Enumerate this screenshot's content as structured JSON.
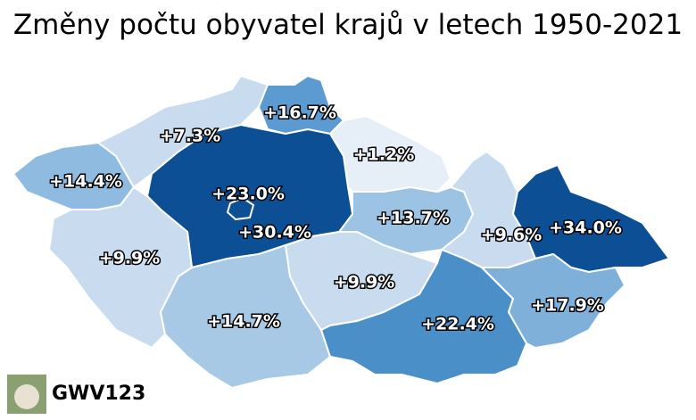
{
  "title": "Změny počtu obyvatel krajů v letech 1950-2021",
  "regions": [
    {
      "label": "+14.4%",
      "color": "#8fbbe0"
    },
    {
      "label": "+7.3%",
      "color": "#c9dcef"
    },
    {
      "label": "+16.7%",
      "color": "#5b9bd1"
    },
    {
      "label": "+1.2%",
      "color": "#e6eff8"
    },
    {
      "label": "+13.7%",
      "color": "#9cc3e4"
    },
    {
      "label": "+9.6%",
      "color": "#c9dcef"
    },
    {
      "label": "+34.0%",
      "color": "#0d4f94"
    },
    {
      "label": "+23.0%",
      "color": "#0d4f94"
    },
    {
      "label": "+30.4%",
      "color": "#0d4f94"
    },
    {
      "label": "+9.9%",
      "color": "#c9dcef"
    },
    {
      "label": "+14.7%",
      "color": "#a8c9e6"
    },
    {
      "label": "+9.9%",
      "color": "#c9dcef"
    },
    {
      "label": "+22.4%",
      "color": "#4a8fc8"
    },
    {
      "label": "+17.9%",
      "color": "#7fb0da"
    }
  ],
  "watermark": "GWV123"
}
